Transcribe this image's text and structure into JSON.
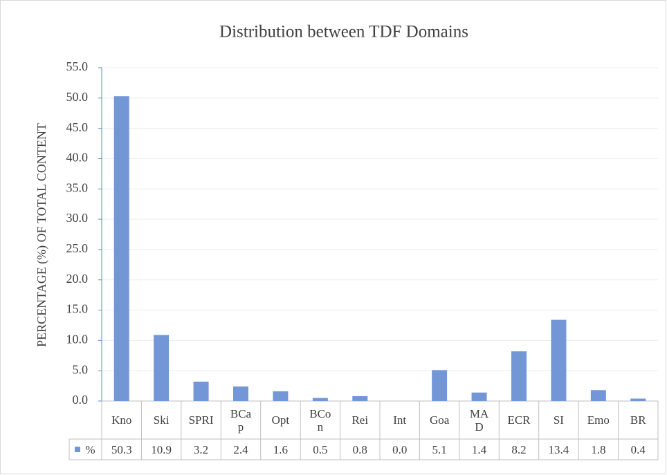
{
  "chart_data": {
    "type": "bar",
    "title": "Distribution between TDF Domains",
    "y_label": "PERCENTAGE (%) OF TOTAL CONTENT",
    "categories": [
      "Kno",
      "Ski",
      "SPRI",
      "BCap",
      "Opt",
      "BCon",
      "Rei",
      "Int",
      "Goa",
      "MAD",
      "ECR",
      "SI",
      "Emo",
      "BR"
    ],
    "series": [
      {
        "name": "%",
        "color": "#7397d6",
        "values": [
          50.3,
          10.9,
          3.2,
          2.4,
          1.6,
          0.5,
          0.8,
          0.0,
          5.1,
          1.4,
          8.2,
          13.4,
          1.8,
          0.4
        ],
        "value_labels": [
          "50.3",
          "10.9",
          "3.2",
          "2.4",
          "1.6",
          "0.5",
          "0.8",
          "0.0",
          "5.1",
          "1.4",
          "8.2",
          "13.4",
          "1.8",
          "0.4"
        ]
      }
    ],
    "ylim": [
      0,
      55
    ],
    "yticks": [
      {
        "value": 0,
        "label": "0.0"
      },
      {
        "value": 5,
        "label": "5.0"
      },
      {
        "value": 10,
        "label": "10.0"
      },
      {
        "value": 15,
        "label": "15.0"
      },
      {
        "value": 20,
        "label": "20.0"
      },
      {
        "value": 25,
        "label": "25.0"
      },
      {
        "value": 30,
        "label": "30.0"
      },
      {
        "value": 35,
        "label": "35.0"
      },
      {
        "value": 40,
        "label": "40.0"
      },
      {
        "value": 45,
        "label": "45.0"
      },
      {
        "value": 50,
        "label": "50.0"
      },
      {
        "value": 55,
        "label": "55.0"
      }
    ],
    "grid": true
  }
}
